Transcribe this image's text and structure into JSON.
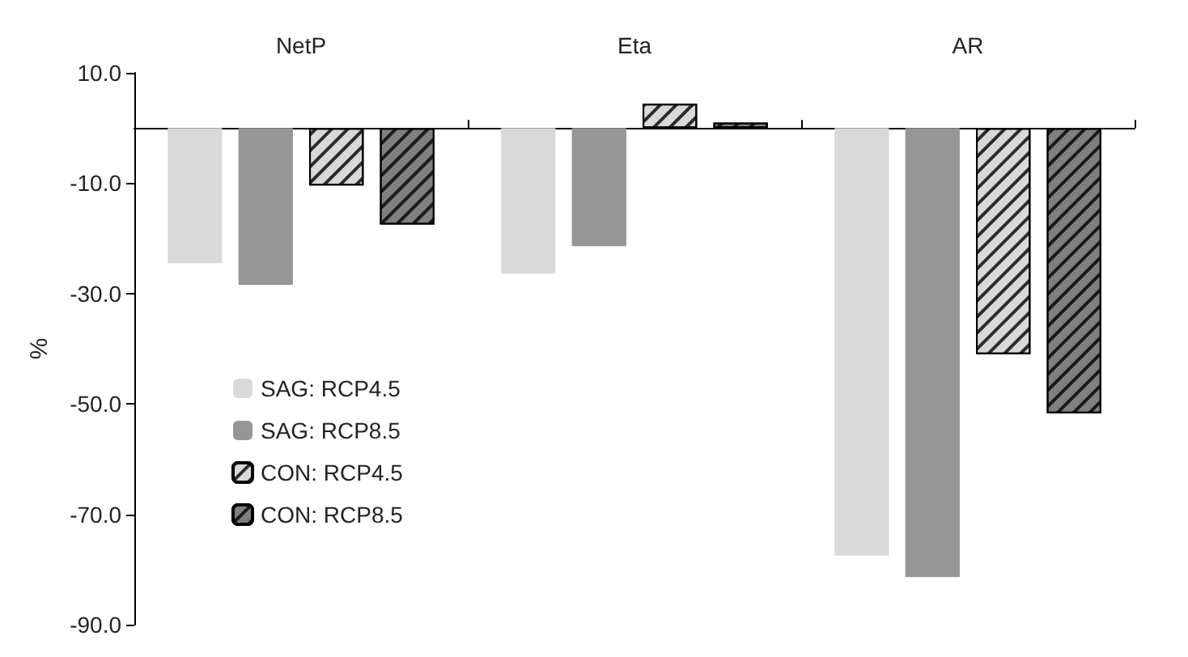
{
  "chart_data": {
    "type": "bar",
    "categories": [
      "NetP",
      "Eta",
      "AR"
    ],
    "ylabel": "%",
    "ylim": [
      -90,
      10
    ],
    "yticks": [
      {
        "value": -90,
        "label": "-90.0"
      },
      {
        "value": -70,
        "label": "-70.0"
      },
      {
        "value": -50,
        "label": "-50.0"
      },
      {
        "value": -30,
        "label": "-30.0"
      },
      {
        "value": -10,
        "label": "-10.0"
      },
      {
        "value": 10,
        "label": "10.0"
      }
    ],
    "series": [
      {
        "name": "SAG: RCP4.5",
        "color": "#d9d9d9",
        "values": [
          -24.5,
          -26.4,
          -77.5
        ]
      },
      {
        "name": "SAG: RCP8.5",
        "color": "#969696",
        "values": [
          -28.4,
          -21.4,
          -81.4
        ]
      },
      {
        "name": "CON: RCP4.5",
        "color": "#d9d9d9",
        "values": [
          -10.4,
          4.4,
          -41
        ]
      },
      {
        "name": "CON: RCP8.5",
        "color": "#7f7f7f",
        "values": [
          -17.5,
          1,
          -51.7
        ]
      }
    ],
    "grid": false,
    "legend": "left"
  }
}
